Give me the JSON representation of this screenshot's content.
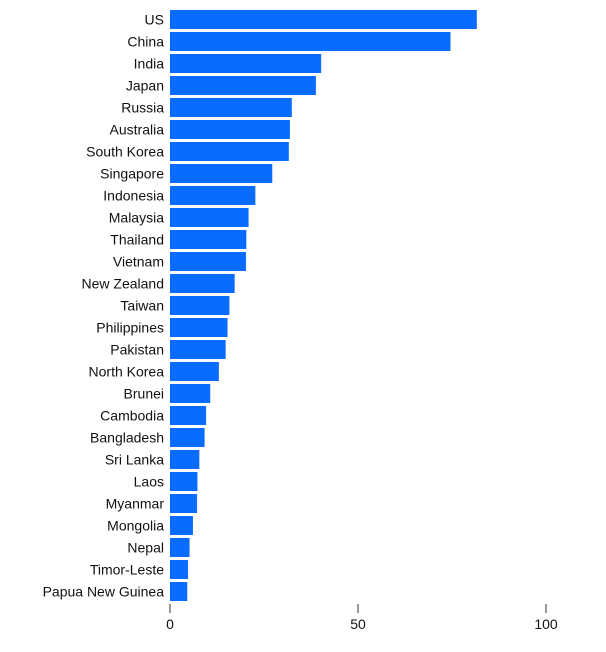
{
  "chart_data": {
    "type": "bar",
    "orientation": "horizontal",
    "title": "",
    "xlabel": "",
    "ylabel": "",
    "categories": [
      "US",
      "China",
      "India",
      "Japan",
      "Russia",
      "Australia",
      "South Korea",
      "Singapore",
      "Indonesia",
      "Malaysia",
      "Thailand",
      "Vietnam",
      "New Zealand",
      "Taiwan",
      "Philippines",
      "Pakistan",
      "North Korea",
      "Brunei",
      "Cambodia",
      "Bangladesh",
      "Sri Lanka",
      "Laos",
      "Myanmar",
      "Mongolia",
      "Nepal",
      "Timor-Leste",
      "Papua New Guinea"
    ],
    "values": [
      81.6,
      74.6,
      40.2,
      38.8,
      32.4,
      31.9,
      31.6,
      27.2,
      22.7,
      20.9,
      20.3,
      20.2,
      17.2,
      15.8,
      15.3,
      14.8,
      13.0,
      10.7,
      9.6,
      9.2,
      7.8,
      7.3,
      7.2,
      6.1,
      5.2,
      4.8,
      4.6
    ],
    "xlim": [
      0,
      100
    ],
    "xticks": [
      "0",
      "50",
      "100"
    ],
    "xtick_values": [
      0,
      50,
      100
    ],
    "bar_color": "#0a6cff",
    "grid": false,
    "legend": "none"
  }
}
